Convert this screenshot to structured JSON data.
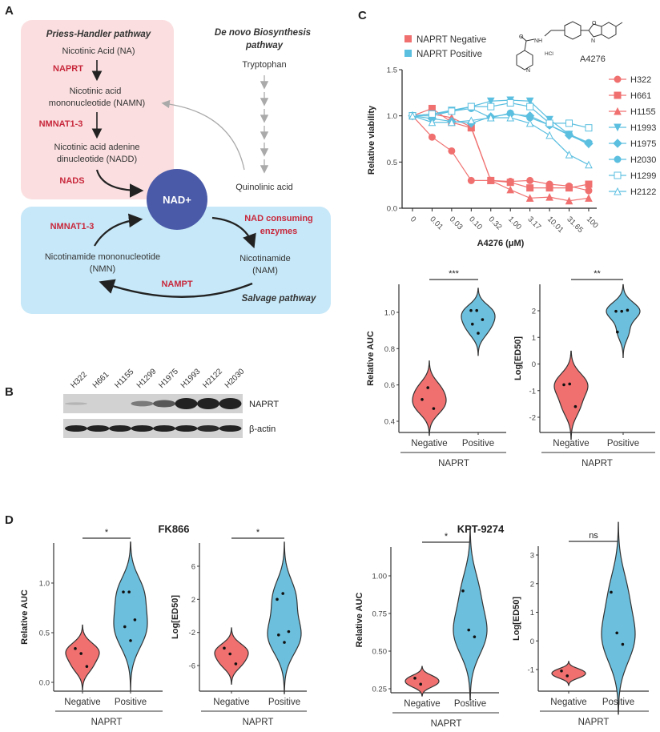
{
  "panels": {
    "a": "A",
    "b": "B",
    "c": "C",
    "d": "D"
  },
  "diagram": {
    "preiss_title": "Priess-Handler pathway",
    "na": "Nicotinic Acid (NA)",
    "naprt": "NAPRT",
    "namn_1": "Nicotinic acid",
    "namn_2": "mononucleotide (NAMN)",
    "nmnat_top": "NMNAT1-3",
    "nadd_1": "Nicotinic acid adenine",
    "nadd_2": "dinucleotide (NADD)",
    "nads": "NADS",
    "denovo_1": "De novo Biosynthesis",
    "denovo_2": "pathway",
    "tryptophan": "Tryptophan",
    "quinolinic": "Quinolinic acid",
    "nad": "NAD+",
    "nmnat_bottom": "NMNAT1-3",
    "consuming_1": "NAD consuming",
    "consuming_2": "enzymes",
    "nmn_1": "Nicotinamide mononucleotide",
    "nmn_2": "(NMN)",
    "nam_1": "Nicotinamide",
    "nam_2": "(NAM)",
    "nampt": "NAMPT",
    "salvage_title": "Salvage pathway",
    "colors": {
      "preiss_bg": "#fbdfe0",
      "salvage_bg": "#c7e8f8",
      "nad": "#4a5aa8",
      "enzyme": "#c8283c"
    }
  },
  "blot": {
    "lanes": [
      "H322",
      "H661",
      "H1155",
      "H1299",
      "H1975",
      "H1993",
      "H2122",
      "H2030"
    ],
    "rows": [
      {
        "label": "NAPRT",
        "intensity": [
          0.02,
          0.0,
          0.0,
          0.35,
          0.55,
          1.0,
          1.0,
          1.0
        ]
      },
      {
        "label": "β-actin",
        "intensity": [
          0.9,
          0.95,
          0.95,
          0.85,
          0.9,
          0.85,
          0.8,
          0.85
        ]
      }
    ]
  },
  "compound": {
    "name": "A4276",
    "atoms": {
      "o1": "O",
      "nh": "NH",
      "hcl": "HCl",
      "n_pyr": "N",
      "o2": "O",
      "n_ox": "N"
    }
  },
  "chart_data": [
    {
      "type": "line",
      "panel": "C",
      "xlabel": "A4276 (μM)",
      "ylabel": "Relative viability",
      "x_categories": [
        "0",
        "0.01",
        "0.03",
        "0.10",
        "0.32",
        "1.00",
        "3.17",
        "10.01",
        "31.65",
        "100"
      ],
      "ylim": [
        0,
        1.5
      ],
      "yticks": [
        "0.0",
        "0.5",
        "1.0",
        "1.5"
      ],
      "group_legend": [
        {
          "label": "NAPRT Negative",
          "color": "#f07070"
        },
        {
          "label": "NAPRT Positive",
          "color": "#5bbfe0"
        }
      ],
      "legend_position": "right",
      "series": [
        {
          "name": "H322",
          "group": 0,
          "marker": "circle",
          "values": [
            1.0,
            0.77,
            0.62,
            0.3,
            0.3,
            0.29,
            0.3,
            0.26,
            0.24,
            0.19
          ]
        },
        {
          "name": "H661",
          "group": 0,
          "marker": "square",
          "values": [
            1.0,
            1.08,
            0.93,
            0.87,
            0.3,
            0.28,
            0.22,
            0.22,
            0.22,
            0.26
          ]
        },
        {
          "name": "H1155",
          "group": 0,
          "marker": "triangle",
          "values": [
            1.0,
            1.02,
            0.98,
            0.88,
            0.3,
            0.2,
            0.11,
            0.12,
            0.08,
            0.11
          ]
        },
        {
          "name": "H1993",
          "group": 1,
          "marker": "triangle-down",
          "values": [
            1.0,
            1.02,
            1.06,
            1.1,
            1.16,
            1.17,
            1.16,
            0.96,
            0.8,
            0.69
          ]
        },
        {
          "name": "H1975",
          "group": 1,
          "marker": "diamond",
          "values": [
            1.0,
            0.97,
            0.94,
            0.92,
            0.99,
            1.02,
            1.0,
            0.9,
            0.79,
            0.7
          ]
        },
        {
          "name": "H2030",
          "group": 1,
          "marker": "circle",
          "values": [
            1.0,
            1.0,
            1.05,
            1.08,
            0.98,
            1.03,
            0.98,
            0.9,
            0.8,
            0.71
          ]
        },
        {
          "name": "H1299",
          "group": 1,
          "marker": "square-open",
          "values": [
            1.0,
            1.02,
            1.05,
            1.1,
            1.1,
            1.14,
            1.1,
            0.92,
            0.92,
            0.87
          ]
        },
        {
          "name": "H2122",
          "group": 1,
          "marker": "triangle-open",
          "values": [
            1.0,
            0.93,
            0.93,
            0.95,
            0.98,
            0.98,
            0.92,
            0.79,
            0.58,
            0.47
          ]
        }
      ]
    },
    {
      "type": "violin",
      "panel": "C",
      "title": "",
      "ylabel": "Relative AUC",
      "xlabel": "NAPRT",
      "categories": [
        "Negative",
        "Positive"
      ],
      "yticks": [
        "0.4",
        "0.6",
        "0.8",
        "1.0"
      ],
      "significance": "***",
      "series": [
        {
          "values": [
            0.52,
            0.585,
            0.47
          ]
        },
        {
          "values": [
            1.01,
            1.01,
            0.96,
            0.935,
            0.885
          ]
        }
      ]
    },
    {
      "type": "violin",
      "panel": "C",
      "title": "",
      "ylabel": "Log[ED50]",
      "xlabel": "NAPRT",
      "categories": [
        "Negative",
        "Positive"
      ],
      "yticks": [
        "-2",
        "-1",
        "0",
        "1",
        "2"
      ],
      "significance": "**",
      "series": [
        {
          "values": [
            -0.78,
            -0.75,
            -1.6
          ]
        },
        {
          "values": [
            1.98,
            1.98,
            2.02,
            1.2
          ]
        }
      ]
    },
    {
      "type": "violin",
      "panel": "D",
      "title": "FK866",
      "ylabel": "Relative AUC",
      "xlabel": "NAPRT",
      "categories": [
        "Negative",
        "Positive"
      ],
      "yticks": [
        "0.0",
        "0.5",
        "1.0"
      ],
      "significance": "*",
      "series": [
        {
          "values": [
            0.34,
            0.29,
            0.16
          ]
        },
        {
          "values": [
            0.91,
            0.91,
            0.63,
            0.56,
            0.42
          ]
        }
      ]
    },
    {
      "type": "violin",
      "panel": "D",
      "title": "",
      "ylabel": "Log[ED50]",
      "xlabel": "NAPRT",
      "categories": [
        "Negative",
        "Positive"
      ],
      "yticks": [
        "-6",
        "-2",
        "2",
        "6"
      ],
      "significance": "*",
      "series": [
        {
          "values": [
            -3.9,
            -4.6,
            -5.8
          ]
        },
        {
          "values": [
            2.0,
            2.7,
            -1.9,
            -2.3,
            -3.2
          ]
        }
      ]
    },
    {
      "type": "violin",
      "panel": "D",
      "title": "KPT-9274",
      "ylabel": "Relative AUC",
      "xlabel": "NAPRT",
      "categories": [
        "Negative",
        "Positive"
      ],
      "yticks": [
        "0.25",
        "0.50",
        "0.75",
        "1.00"
      ],
      "significance": "*",
      "series": [
        {
          "values": [
            0.32,
            0.28
          ]
        },
        {
          "values": [
            0.9,
            0.64,
            0.595
          ]
        }
      ]
    },
    {
      "type": "violin",
      "panel": "D",
      "title": "",
      "ylabel": "Log[ED50]",
      "xlabel": "NAPRT",
      "categories": [
        "Negative",
        "Positive"
      ],
      "yticks": [
        "-1",
        "0",
        "1",
        "2",
        "3"
      ],
      "significance": "ns",
      "series": [
        {
          "values": [
            -1.05,
            -1.22
          ]
        },
        {
          "values": [
            1.7,
            0.28,
            -0.12
          ]
        }
      ]
    }
  ],
  "colors": {
    "negative": "#f07070",
    "positive": "#6cc0de",
    "axis": "#333333"
  }
}
